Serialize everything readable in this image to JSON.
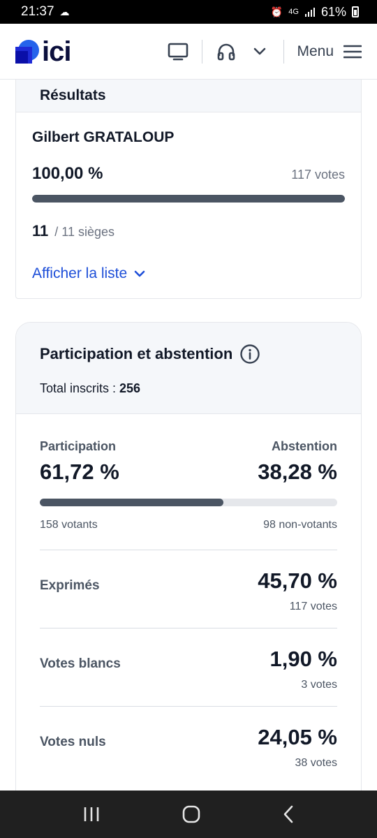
{
  "status_bar": {
    "time": "21:37",
    "battery": "61%",
    "network": "4G"
  },
  "app_bar": {
    "logo_text": "ici",
    "menu_label": "Menu"
  },
  "results": {
    "section_title": "Résultats",
    "candidate": "Gilbert GRATALOUP",
    "percent": "100,00 %",
    "votes": "117 votes",
    "bar_fraction": 1.0,
    "seats_won": "11",
    "seats_total": "/ 11 sièges",
    "show_list": "Afficher la liste"
  },
  "participation": {
    "title": "Participation et abstention",
    "registered_label": "Total inscrits : ",
    "registered_value": "256",
    "participation_label": "Participation",
    "participation_pct": "61,72 %",
    "abstention_label": "Abstention",
    "abstention_pct": "38,28 %",
    "participation_fraction": 0.6172,
    "voters": "158 votants",
    "non_voters": "98 non-votants",
    "stats": [
      {
        "label": "Exprimés",
        "pct": "45,70 %",
        "votes": "117 votes"
      },
      {
        "label": "Votes blancs",
        "pct": "1,90 %",
        "votes": "3 votes"
      },
      {
        "label": "Votes nuls",
        "pct": "24,05 %",
        "votes": "38 votes"
      }
    ]
  },
  "colors": {
    "accent_blue": "#1d4ed8",
    "logo_blue": "#2563eb",
    "bar_fill": "#4b5563",
    "bar_track": "#e5e7eb"
  }
}
